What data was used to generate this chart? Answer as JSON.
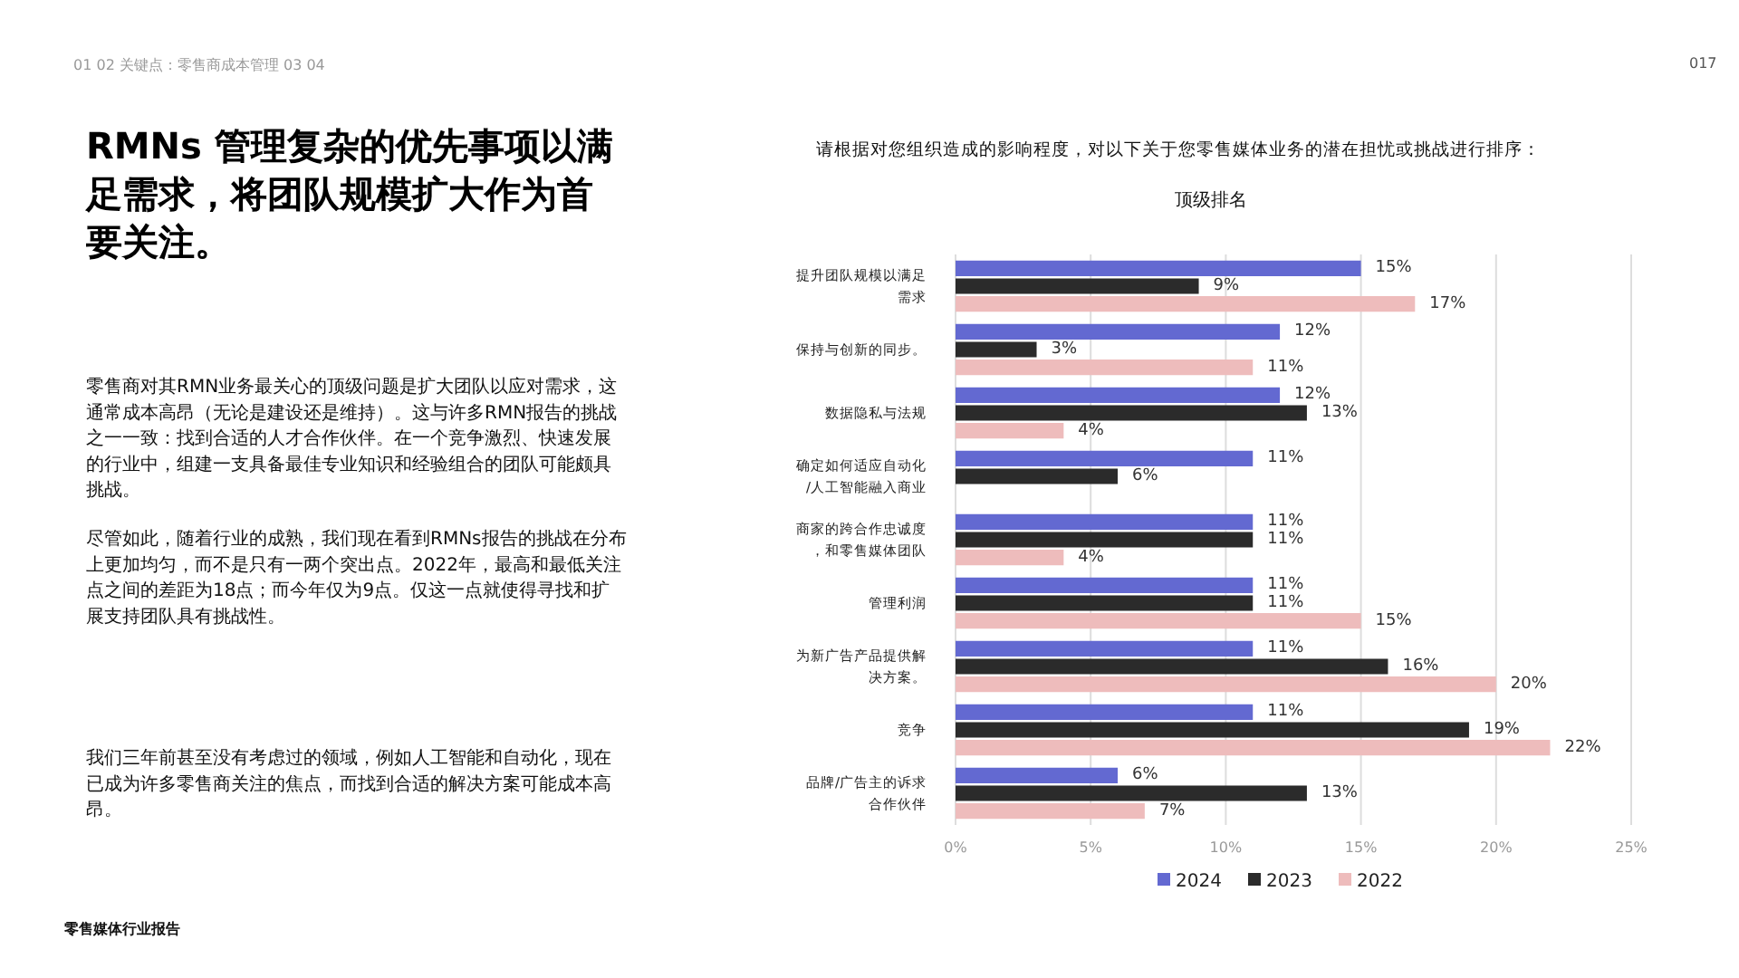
{
  "chart_data": {
    "type": "bar",
    "orientation": "horizontal",
    "title": "请根据对您组织造成的影响程度，对以下关于您零售媒体业务的潜在担忧或挑战进行排序：",
    "subtitle": "顶级排名",
    "categories": [
      "提升团队规模以满足需求",
      "保持与创新的同步。",
      "数据隐私与法规",
      "确定如何适应自动化/人工智能融入商业",
      "商家的跨合作忠诚度，和零售媒体团队",
      "管理利润",
      "为新广告产品提供解决方案。",
      "竞争",
      "品牌/广告主的诉求合作伙伴"
    ],
    "series": [
      {
        "name": "2024",
        "color": "#6369d1",
        "values": [
          15,
          12,
          12,
          11,
          11,
          11,
          11,
          11,
          6
        ],
        "value_labels": [
          "15%",
          "12%",
          "12%",
          "11%",
          "11%",
          "11%",
          "11%",
          "11%",
          "6%"
        ]
      },
      {
        "name": "2023",
        "color": "#2b2b2b",
        "values": [
          9,
          3,
          13,
          6,
          11,
          11,
          16,
          19,
          13
        ],
        "value_labels": [
          "9%",
          "3%",
          "13%",
          "6%",
          "11%",
          "11%",
          "16%",
          "19%",
          "13%"
        ]
      },
      {
        "name": "2022",
        "color": "#eebcbc",
        "values": [
          17,
          11,
          4,
          null,
          4,
          15,
          20,
          22,
          7
        ],
        "value_labels": [
          "17%",
          "11%",
          "4%",
          null,
          "4%",
          "15%",
          "20%",
          "22%",
          "7%"
        ]
      }
    ],
    "xlim": [
      0,
      25
    ],
    "xticks": [
      {
        "value": 0,
        "label": "0%"
      },
      {
        "value": 5,
        "label": "5%"
      },
      {
        "value": 10,
        "label": "10%"
      },
      {
        "value": 15,
        "label": "15%"
      },
      {
        "value": 20,
        "label": "20%"
      },
      {
        "value": 25,
        "label": "25%"
      }
    ],
    "grid": "x",
    "legend": "bottom",
    "annotations": [
      "01 02 关键点：零售商成本管理 03 04",
      "017",
      "RMNs 管理复杂的优先事项以满足需求，将团队规模扩大作为首要关注。",
      "零售商对其RMN业务最关心的顶级问题是扩大团队以应对需求，这通常成本高昂（无论是建设还是维持）。这与许多RMN报告的挑战之一一致：找到合适的人才合作伙伴。在一个竞争激烈、快速发展的行业中，组建一支具备最佳专业知识和经验组合的团队可能颇具挑战。",
      "尽管如此，随着行业的成熟，我们现在看到RMNs报告的挑战在分布上更加均匀，而不是只有一两个突出点。2022年，最高和最低关注点之间的差距为18点；而今年仅为9点。仅这一点就使得寻找和扩展支持团队具有挑战性。",
      "我们三年前甚至没有考虑过的领域，例如人工智能和自动化，现在已成为许多零售商关注的焦点，而找到合适的解决方案可能成本高昂。",
      "零售媒体行业报告"
    ]
  }
}
